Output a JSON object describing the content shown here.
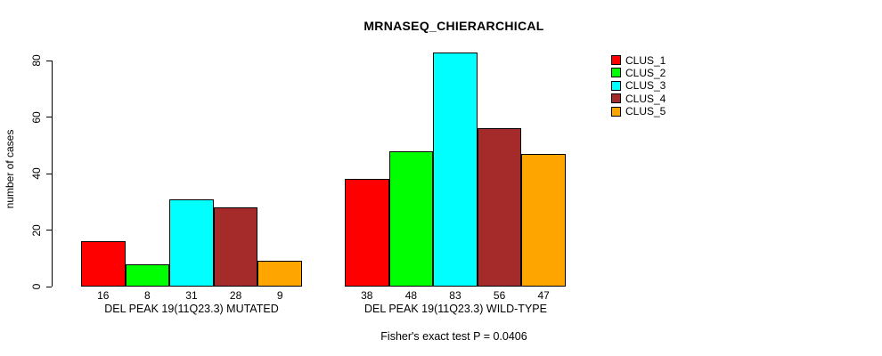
{
  "title": "MRNASEQ_CHIERARCHICAL",
  "footer": "Fisher's exact test P = 0.0406",
  "legend": {
    "position": "top-right",
    "items": [
      {
        "label": "CLUS_1",
        "color": "#FF0000"
      },
      {
        "label": "CLUS_2",
        "color": "#00FF00"
      },
      {
        "label": "CLUS_3",
        "color": "#00FFFF"
      },
      {
        "label": "CLUS_4",
        "color": "#A52A2A"
      },
      {
        "label": "CLUS_5",
        "color": "#FFA500"
      }
    ]
  },
  "chart_data": {
    "type": "bar",
    "title": "MRNASEQ_CHIERARCHICAL",
    "xlabel": "",
    "ylabel": "number of cases",
    "yticks": [
      0,
      20,
      40,
      60,
      80
    ],
    "ylim": [
      0,
      88
    ],
    "grid": false,
    "legend_position": "top-right",
    "series_names": [
      "CLUS_1",
      "CLUS_2",
      "CLUS_3",
      "CLUS_4",
      "CLUS_5"
    ],
    "series_colors": [
      "#FF0000",
      "#00FF00",
      "#00FFFF",
      "#A52A2A",
      "#FFA500"
    ],
    "groups": [
      {
        "label": "DEL PEAK 19(11Q23.3) MUTATED",
        "values": [
          16,
          8,
          31,
          28,
          9
        ]
      },
      {
        "label": "DEL PEAK 19(11Q23.3) WILD-TYPE",
        "values": [
          38,
          48,
          83,
          56,
          47
        ]
      }
    ],
    "annotation": "Fisher's exact test P = 0.0406"
  }
}
